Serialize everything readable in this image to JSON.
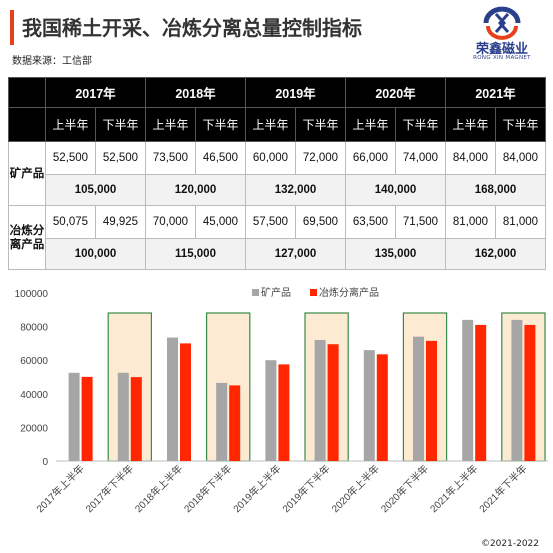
{
  "header": {
    "title": "我国稀土开采、冶炼分离总量控制指标",
    "source": "数据来源：工信部"
  },
  "logo": {
    "name": "荣鑫磁业",
    "sub": "RONG XIN MAGNET"
  },
  "table": {
    "years": [
      "2017年",
      "2018年",
      "2019年",
      "2020年",
      "2021年"
    ],
    "halves": [
      "上半年",
      "下半年",
      "上半年",
      "下半年",
      "上半年",
      "下半年",
      "上半年",
      "下半年",
      "上半年",
      "下半年"
    ],
    "mine_label": "矿产品",
    "smelt_label": "冶炼分离产品",
    "mine_half": [
      "52,500",
      "52,500",
      "73,500",
      "46,500",
      "60,000",
      "72,000",
      "66,000",
      "74,000",
      "84,000",
      "84,000"
    ],
    "mine_total": [
      "105,000",
      "120,000",
      "132,000",
      "140,000",
      "168,000"
    ],
    "smelt_half": [
      "50,075",
      "49,925",
      "70,000",
      "45,000",
      "57,500",
      "69,500",
      "63,500",
      "71,500",
      "81,000",
      "81,000"
    ],
    "smelt_total": [
      "100,000",
      "115,000",
      "127,000",
      "135,000",
      "162,000"
    ]
  },
  "chart_data": {
    "type": "bar",
    "categories": [
      "2017年上半年",
      "2017年下半年",
      "2018年上半年",
      "2018年下半年",
      "2019年上半年",
      "2019年下半年",
      "2020年上半年",
      "2020年下半年",
      "2021年上半年",
      "2021年下半年"
    ],
    "series": [
      {
        "name": "矿产品",
        "color": "#a6a6a6",
        "values": [
          52500,
          52500,
          73500,
          46500,
          60000,
          72000,
          66000,
          74000,
          84000,
          84000
        ]
      },
      {
        "name": "冶炼分离产品",
        "color": "#ff2600",
        "values": [
          50075,
          49925,
          70000,
          45000,
          57500,
          69500,
          63500,
          71500,
          81000,
          81000
        ]
      }
    ],
    "highlighted_categories": [
      1,
      3,
      5,
      7,
      9
    ],
    "highlight_fill": "#fcebd2",
    "highlight_border": "#3a8a4a",
    "yticks": [
      0,
      20000,
      40000,
      60000,
      80000,
      100000
    ],
    "ylim": [
      0,
      100000
    ],
    "legend": "top-center",
    "grid": false
  },
  "footer": {
    "copyright": "©2021-2022"
  }
}
